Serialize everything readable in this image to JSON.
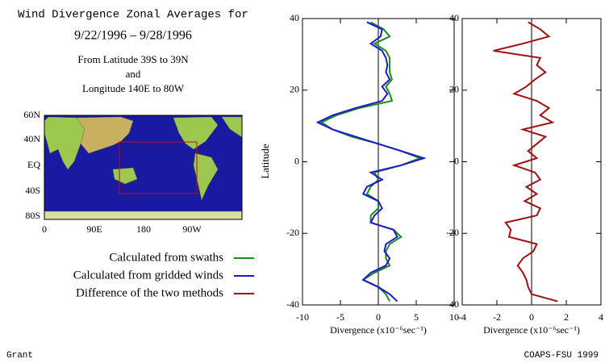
{
  "header": {
    "title": "Wind Divergence Zonal Averages for",
    "dates": "9/22/1996 – 9/28/1996",
    "region": [
      "From Latitude 39S to 39N",
      "and",
      "Longitude 140E to 80W"
    ]
  },
  "map": {
    "lat_labels": [
      "60N",
      "40N",
      "EQ",
      "40S",
      "80S"
    ],
    "lon_labels": [
      "0",
      "90E",
      "180",
      "90W"
    ]
  },
  "legend": [
    "Calculated from swaths",
    "Calculated from gridded winds",
    "Difference of the two methods"
  ],
  "footer": {
    "left": "Grant",
    "right": "COAPS-FSU 1999"
  },
  "chart_data": [
    {
      "type": "line",
      "xlabel": "Divergence (x10⁻⁶sec⁻¹)",
      "ylabel": "Latitude",
      "y": [
        39,
        37,
        35,
        33,
        31,
        29,
        27,
        25,
        23,
        21,
        19,
        17,
        15,
        13,
        11,
        9,
        7,
        5,
        3,
        1,
        -1,
        -3,
        -5,
        -7,
        -9,
        -11,
        -13,
        -15,
        -17,
        -19,
        -21,
        -23,
        -25,
        -27,
        -29,
        -31,
        -33,
        -35,
        -37,
        -39
      ],
      "xlim": [
        -10,
        10
      ],
      "xticks": [
        -10,
        -5,
        0,
        5,
        10
      ],
      "ylim": [
        -40,
        40
      ],
      "yticks": [
        -40,
        -20,
        0,
        20,
        40
      ],
      "series": [
        {
          "name": "Calculated from swaths",
          "color": "#1a8c1a",
          "values": [
            -1,
            0.7,
            1.5,
            -0.5,
            1,
            1.5,
            1.5,
            1.5,
            1.8,
            1,
            1.5,
            1.8,
            -2.5,
            -5.5,
            -7.5,
            -6,
            -3.5,
            0,
            3,
            5.5,
            3,
            -0.5,
            0,
            -1,
            -1.5,
            0,
            0,
            -1,
            -1,
            2,
            3,
            1.5,
            1,
            1,
            1.5,
            -0.5,
            -2,
            0,
            1,
            1.5
          ]
        },
        {
          "name": "Calculated from gridded winds",
          "color": "#1a1acc",
          "values": [
            -1.5,
            0.5,
            0.3,
            -1,
            0.5,
            1,
            1.2,
            1,
            1.5,
            0.5,
            1.2,
            0.5,
            -3,
            -6,
            -8,
            -6,
            -3,
            0,
            3,
            6,
            3,
            -1,
            0.5,
            -1.5,
            -2,
            0,
            0.5,
            -0.5,
            -1,
            2,
            2.5,
            1,
            0.8,
            1.5,
            1,
            -1,
            -2,
            0,
            1.5,
            2.5
          ]
        }
      ]
    },
    {
      "type": "line",
      "xlabel": "Divergence (x10⁻⁶sec⁻¹)",
      "y": [
        39,
        37,
        35,
        33,
        31,
        29,
        27,
        25,
        23,
        21,
        19,
        17,
        15,
        13,
        11,
        9,
        7,
        5,
        3,
        1,
        -1,
        -3,
        -5,
        -7,
        -9,
        -11,
        -13,
        -15,
        -17,
        -19,
        -21,
        -23,
        -25,
        -27,
        -29,
        -31,
        -33,
        -35,
        -37,
        -39
      ],
      "xlim": [
        -4,
        4
      ],
      "xticks": [
        -4,
        -2,
        0,
        2,
        4
      ],
      "ylim": [
        -40,
        40
      ],
      "yticks": [
        -40,
        -20,
        0,
        20,
        40
      ],
      "series": [
        {
          "name": "Difference of the two methods",
          "color": "#a01010",
          "values": [
            -0.2,
            0.5,
            1,
            -0.5,
            -2.2,
            0.5,
            0.3,
            0.8,
            0.2,
            -0.3,
            -1,
            0.3,
            1,
            0.5,
            1.2,
            -0.5,
            0.8,
            0.3,
            -0.2,
            0.3,
            -1,
            0.2,
            0.5,
            -0.3,
            0.3,
            -0.4,
            0.5,
            0.3,
            -1.5,
            -1.2,
            -1.3,
            0.3,
            0.1,
            -0.5,
            -0.8,
            -0.5,
            -0.3,
            -0.2,
            0,
            1.5
          ]
        }
      ]
    }
  ]
}
